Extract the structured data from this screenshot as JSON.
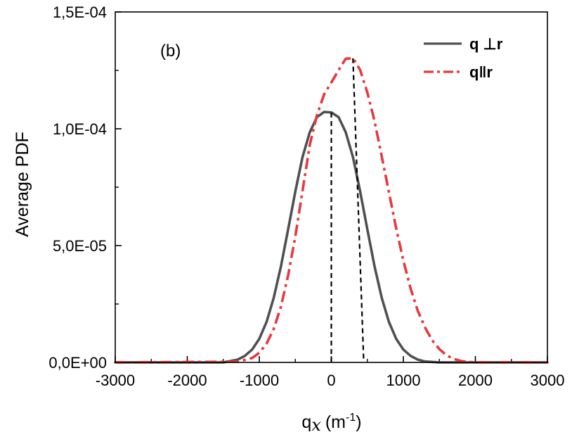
{
  "chart_data": {
    "type": "line",
    "panel_label": "(b)",
    "xlabel_main": "q",
    "xlabel_sub": "x",
    "xlabel_unit_base": "(m",
    "xlabel_unit_exp": "-1",
    "xlabel_unit_close": ")",
    "ylabel": "Average PDF",
    "xlim": [
      -3000,
      3000
    ],
    "ylim": [
      0,
      0.00015
    ],
    "x_ticks": [
      -3000,
      -2000,
      -1000,
      0,
      1000,
      2000,
      3000
    ],
    "x_tick_labels": [
      "-3000",
      "-2000",
      "-1000",
      "0",
      "1000",
      "2000",
      "3000"
    ],
    "y_ticks": [
      0,
      5e-05,
      0.0001,
      0.00015
    ],
    "y_tick_labels": [
      "0,0E+00",
      "5,0E-05",
      "1,0E-04",
      "1,5E-04"
    ],
    "legend_position": "top-right",
    "series": [
      {
        "name": "q ⊥r",
        "style": "solid",
        "color": "#505050",
        "x": [
          -3000,
          -1500,
          -1300,
          -1200,
          -1100,
          -1000,
          -900,
          -800,
          -700,
          -600,
          -500,
          -400,
          -300,
          -200,
          -100,
          0,
          100,
          200,
          300,
          400,
          500,
          600,
          700,
          800,
          900,
          1000,
          1100,
          1200,
          1300,
          1500,
          3000
        ],
        "y": [
          0,
          0.0,
          1.2e-06,
          2.8e-06,
          5.5e-06,
          1.01e-05,
          1.73e-05,
          2.76e-05,
          4.11e-05,
          5.69e-05,
          7.32e-05,
          8.79e-05,
          9.85e-05,
          0.000105,
          0.0001072,
          0.000107,
          0.000105,
          9.85e-05,
          8.79e-05,
          7.32e-05,
          5.69e-05,
          4.11e-05,
          2.76e-05,
          1.73e-05,
          1.01e-05,
          5.5e-06,
          2.8e-06,
          1.2e-06,
          4e-07,
          0.0,
          0
        ]
      },
      {
        "name": "q‖r",
        "style": "dash-dot",
        "color": "#e8383d",
        "x": [
          -3000,
          -1300,
          -1100,
          -1000,
          -900,
          -800,
          -700,
          -600,
          -500,
          -400,
          -300,
          -200,
          -100,
          0,
          100,
          200,
          300,
          400,
          500,
          600,
          700,
          800,
          900,
          1000,
          1100,
          1200,
          1300,
          1400,
          1500,
          1600,
          1700,
          1800,
          1900,
          2000,
          3000
        ],
        "y": [
          0,
          3e-07,
          1.9e-06,
          4.1e-06,
          8e-06,
          1.43e-05,
          2.39e-05,
          3.72e-05,
          5.4e-05,
          7.33e-05,
          9.3e-05,
          0.0001058,
          0.0001148,
          0.0001198,
          0.0001251,
          0.00013,
          0.0001302,
          0.0001252,
          0.0001155,
          0.0001033,
          8.81e-05,
          7.28e-05,
          5.74e-05,
          4.36e-05,
          3.17e-05,
          2.21e-05,
          1.5e-05,
          9.5e-06,
          5.7e-06,
          3e-06,
          1.5e-06,
          6e-07,
          2e-07,
          0,
          0
        ]
      }
    ],
    "reference_lines": [
      {
        "style": "dashed",
        "color": "#000000",
        "x": [
          0,
          0
        ],
        "y": [
          0,
          0.0001072
        ]
      },
      {
        "style": "dashed",
        "color": "#000000",
        "x": [
          300,
          450
        ],
        "y": [
          0.0001302,
          0
        ]
      }
    ]
  }
}
